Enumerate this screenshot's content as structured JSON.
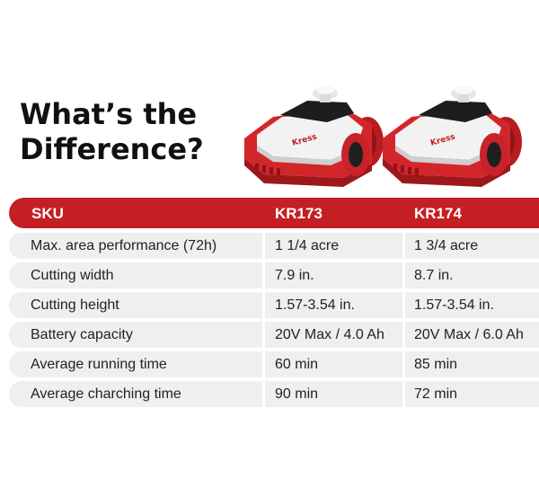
{
  "headline": {
    "line1": "What’s the",
    "line2": "Difference?"
  },
  "product": {
    "brand_mark": "Kress"
  },
  "table": {
    "header": {
      "label": "SKU",
      "model_a": "KR173",
      "model_b": "KR174"
    },
    "rows": [
      {
        "label": "Max. area performance (72h)",
        "a": "1 1/4 acre",
        "b": "1 3/4 acre"
      },
      {
        "label": "Cutting width",
        "a": "7.9 in.",
        "b": "8.7 in."
      },
      {
        "label": "Cutting height",
        "a": "1.57-3.54 in.",
        "b": "1.57-3.54 in."
      },
      {
        "label": "Battery capacity",
        "a": "20V Max / 4.0 Ah",
        "b": "20V Max / 6.0 Ah"
      },
      {
        "label": "Average running time",
        "a": "60 min",
        "b": "85 min"
      },
      {
        "label": "Average charching time",
        "a": "90 min",
        "b": "72 min"
      }
    ]
  },
  "colors": {
    "accent": "#c41f24",
    "row_bg": "#efefef",
    "text": "#222222"
  }
}
